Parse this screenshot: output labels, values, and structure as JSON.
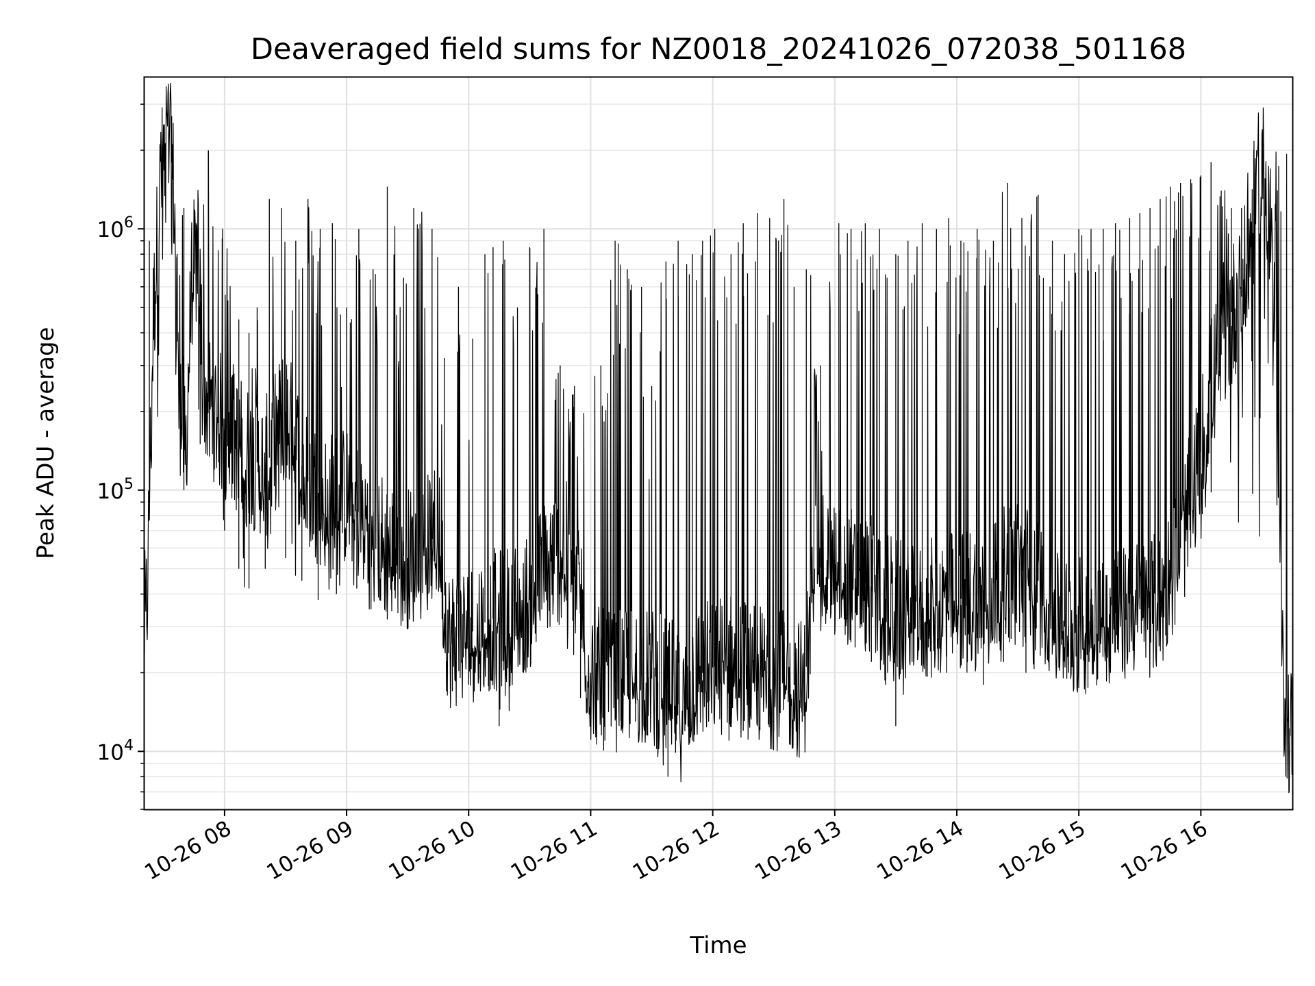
{
  "chart_data": {
    "type": "line",
    "title": "Deaveraged field sums for NZ0018_20241026_072038_501168",
    "xlabel": "Time",
    "ylabel": "Peak ADU - average",
    "yscale": "log",
    "ylim": [
      6000,
      3800000
    ],
    "xlim": [
      "2024-10-26 07:20:38",
      "2024-10-26 16:45:00"
    ],
    "grid": true,
    "legend": "none",
    "line_color": "#000000",
    "y_tick_labels": [
      {
        "value": 10000,
        "base": "10",
        "exp": "4"
      },
      {
        "value": 100000,
        "base": "10",
        "exp": "5"
      },
      {
        "value": 1000000,
        "base": "10",
        "exp": "6"
      }
    ],
    "x_ticks": [
      {
        "value": "2024-10-26 08:00",
        "label": "10-26 08"
      },
      {
        "value": "2024-10-26 09:00",
        "label": "10-26 09"
      },
      {
        "value": "2024-10-26 10:00",
        "label": "10-26 10"
      },
      {
        "value": "2024-10-26 11:00",
        "label": "10-26 11"
      },
      {
        "value": "2024-10-26 12:00",
        "label": "10-26 12"
      },
      {
        "value": "2024-10-26 13:00",
        "label": "10-26 13"
      },
      {
        "value": "2024-10-26 14:00",
        "label": "10-26 14"
      },
      {
        "value": "2024-10-26 15:00",
        "label": "10-26 15"
      },
      {
        "value": "2024-10-26 16:00",
        "label": "10-26 16"
      }
    ],
    "series": [
      {
        "x": [
          "2024-10-26 07:20:38",
          "2024-10-26 07:22",
          "2024-10-26 07:25",
          "2024-10-26 07:28",
          "2024-10-26 07:31",
          "2024-10-26 07:33",
          "2024-10-26 07:35",
          "2024-10-26 07:38",
          "2024-10-26 07:41",
          "2024-10-26 07:44",
          "2024-10-26 07:47",
          "2024-10-26 07:50",
          "2024-10-26 07:55",
          "2024-10-26 08:00",
          "2024-10-26 08:10",
          "2024-10-26 08:20",
          "2024-10-26 08:30",
          "2024-10-26 08:40",
          "2024-10-26 08:50",
          "2024-10-26 09:00",
          "2024-10-26 09:10",
          "2024-10-26 09:20",
          "2024-10-26 09:30",
          "2024-10-26 09:40",
          "2024-10-26 09:45",
          "2024-10-26 09:50",
          "2024-10-26 10:00",
          "2024-10-26 10:10",
          "2024-10-26 10:20",
          "2024-10-26 10:30",
          "2024-10-26 10:40",
          "2024-10-26 10:50",
          "2024-10-26 10:55",
          "2024-10-26 11:00",
          "2024-10-26 11:10",
          "2024-10-26 11:20",
          "2024-10-26 11:30",
          "2024-10-26 11:40",
          "2024-10-26 11:45",
          "2024-10-26 11:50",
          "2024-10-26 12:00",
          "2024-10-26 12:10",
          "2024-10-26 12:20",
          "2024-10-26 12:30",
          "2024-10-26 12:40",
          "2024-10-26 12:45",
          "2024-10-26 12:50",
          "2024-10-26 13:00",
          "2024-10-26 13:10",
          "2024-10-26 13:20",
          "2024-10-26 13:30",
          "2024-10-26 13:40",
          "2024-10-26 13:50",
          "2024-10-26 14:00",
          "2024-10-26 14:10",
          "2024-10-26 14:20",
          "2024-10-26 14:30",
          "2024-10-26 14:40",
          "2024-10-26 14:50",
          "2024-10-26 15:00",
          "2024-10-26 15:10",
          "2024-10-26 15:20",
          "2024-10-26 15:30",
          "2024-10-26 15:40",
          "2024-10-26 15:50",
          "2024-10-26 16:00",
          "2024-10-26 16:05",
          "2024-10-26 16:10",
          "2024-10-26 16:15",
          "2024-10-26 16:20",
          "2024-10-26 16:25",
          "2024-10-26 16:28",
          "2024-10-26 16:31",
          "2024-10-26 16:34",
          "2024-10-26 16:37",
          "2024-10-26 16:40",
          "2024-10-26 16:42",
          "2024-10-26 16:45"
        ],
        "y": [
          30000,
          40000,
          450000,
          1300000,
          2200000,
          2300000,
          1400000,
          250000,
          150000,
          650000,
          800000,
          230000,
          200000,
          170000,
          140000,
          120000,
          200000,
          110000,
          90000,
          95000,
          75000,
          60000,
          55000,
          62000,
          70000,
          27000,
          28000,
          32000,
          33000,
          38000,
          55000,
          58000,
          40000,
          20000,
          18000,
          20000,
          19000,
          17000,
          14000,
          19000,
          21000,
          22000,
          20000,
          19000,
          18000,
          17000,
          50000,
          52000,
          46000,
          42000,
          35000,
          32000,
          36000,
          38000,
          40000,
          45000,
          50000,
          45000,
          30000,
          30000,
          33000,
          34000,
          35000,
          37000,
          60000,
          140000,
          250000,
          330000,
          480000,
          550000,
          950000,
          1600000,
          1700000,
          1100000,
          300000,
          20000,
          14000,
          11000
        ]
      }
    ],
    "spikes": [
      [
        "2024-10-26 07:23",
        900000
      ],
      [
        "2024-10-26 07:34",
        2700000
      ],
      [
        "2024-10-26 07:40",
        1200000
      ],
      [
        "2024-10-26 07:46",
        1050000
      ],
      [
        "2024-10-26 07:52",
        2000000
      ],
      [
        "2024-10-26 07:59",
        1000000
      ],
      [
        "2024-10-26 08:07",
        450000
      ],
      [
        "2024-10-26 08:12",
        400000
      ],
      [
        "2024-10-26 08:16",
        500000
      ],
      [
        "2024-10-26 08:22",
        1300000
      ],
      [
        "2024-10-26 08:28",
        1200000
      ],
      [
        "2024-10-26 08:35",
        900000
      ],
      [
        "2024-10-26 08:41",
        1300000
      ],
      [
        "2024-10-26 08:47",
        1000000
      ],
      [
        "2024-10-26 08:53",
        1050000
      ],
      [
        "2024-10-26 09:00",
        500000
      ],
      [
        "2024-10-26 09:06",
        1000000
      ],
      [
        "2024-10-26 09:13",
        700000
      ],
      [
        "2024-10-26 09:20",
        1450000
      ],
      [
        "2024-10-26 09:28",
        650000
      ],
      [
        "2024-10-26 09:33",
        1200000
      ],
      [
        "2024-10-26 09:42",
        1000000
      ],
      [
        "2024-10-26 09:48",
        320000
      ],
      [
        "2024-10-26 09:55",
        600000
      ],
      [
        "2024-10-26 10:02",
        380000
      ],
      [
        "2024-10-26 10:08",
        800000
      ],
      [
        "2024-10-26 10:12",
        850000
      ],
      [
        "2024-10-26 10:17",
        900000
      ],
      [
        "2024-10-26 10:24",
        500000
      ],
      [
        "2024-10-26 10:30",
        850000
      ],
      [
        "2024-10-26 10:37",
        1000000
      ],
      [
        "2024-10-26 10:45",
        300000
      ],
      [
        "2024-10-26 10:52",
        250000
      ],
      [
        "2024-10-26 11:05",
        300000
      ],
      [
        "2024-10-26 11:12",
        900000
      ],
      [
        "2024-10-26 11:18",
        700000
      ],
      [
        "2024-10-26 11:25",
        600000
      ],
      [
        "2024-10-26 11:30",
        250000
      ],
      [
        "2024-10-26 11:37",
        750000
      ],
      [
        "2024-10-26 11:43",
        900000
      ],
      [
        "2024-10-26 11:50",
        800000
      ],
      [
        "2024-10-26 11:55",
        900000
      ],
      [
        "2024-10-26 12:01",
        1000000
      ],
      [
        "2024-10-26 12:09",
        800000
      ],
      [
        "2024-10-26 12:15",
        1050000
      ],
      [
        "2024-10-26 12:22",
        1150000
      ],
      [
        "2024-10-26 12:28",
        1100000
      ],
      [
        "2024-10-26 12:35",
        1300000
      ],
      [
        "2024-10-26 12:40",
        600000
      ],
      [
        "2024-10-26 12:46",
        700000
      ],
      [
        "2024-10-26 12:53",
        300000
      ],
      [
        "2024-10-26 13:02",
        1050000
      ],
      [
        "2024-10-26 13:08",
        1000000
      ],
      [
        "2024-10-26 13:15",
        1050000
      ],
      [
        "2024-10-26 13:22",
        1000000
      ],
      [
        "2024-10-26 13:30",
        800000
      ],
      [
        "2024-10-26 13:36",
        900000
      ],
      [
        "2024-10-26 13:43",
        1050000
      ],
      [
        "2024-10-26 13:50",
        1000000
      ],
      [
        "2024-10-26 13:56",
        1100000
      ],
      [
        "2024-10-26 14:02",
        900000
      ],
      [
        "2024-10-26 14:10",
        1000000
      ],
      [
        "2024-10-26 14:18",
        900000
      ],
      [
        "2024-10-26 14:25",
        1500000
      ],
      [
        "2024-10-26 14:32",
        1100000
      ],
      [
        "2024-10-26 14:40",
        1350000
      ],
      [
        "2024-10-26 14:47",
        900000
      ],
      [
        "2024-10-26 14:53",
        800000
      ],
      [
        "2024-10-26 15:00",
        1000000
      ],
      [
        "2024-10-26 15:06",
        1000000
      ],
      [
        "2024-10-26 15:12",
        1000000
      ],
      [
        "2024-10-26 15:18",
        1050000
      ],
      [
        "2024-10-26 15:25",
        1100000
      ],
      [
        "2024-10-26 15:30",
        1150000
      ],
      [
        "2024-10-26 15:35",
        1200000
      ],
      [
        "2024-10-26 15:40",
        1300000
      ],
      [
        "2024-10-26 15:45",
        1450000
      ],
      [
        "2024-10-26 15:50",
        1500000
      ],
      [
        "2024-10-26 15:55",
        1550000
      ],
      [
        "2024-10-26 16:00",
        1600000
      ],
      [
        "2024-10-26 16:05",
        1800000
      ],
      [
        "2024-10-26 16:10",
        1400000
      ],
      [
        "2024-10-26 16:15",
        1200000
      ],
      [
        "2024-10-26 16:20",
        1200000
      ],
      [
        "2024-10-26 16:26",
        2000000
      ]
    ],
    "dips": [
      [
        "2024-10-26 07:40",
        100000
      ],
      [
        "2024-10-26 07:48",
        150000
      ],
      [
        "2024-10-26 07:55",
        120000
      ],
      [
        "2024-10-26 08:00",
        70000
      ],
      [
        "2024-10-26 08:07",
        50000
      ],
      [
        "2024-10-26 08:12",
        42000
      ],
      [
        "2024-10-26 08:20",
        50000
      ],
      [
        "2024-10-26 08:30",
        55000
      ],
      [
        "2024-10-26 08:38",
        45000
      ],
      [
        "2024-10-26 08:46",
        38000
      ],
      [
        "2024-10-26 08:55",
        40000
      ],
      [
        "2024-10-26 09:05",
        42000
      ],
      [
        "2024-10-26 09:12",
        35000
      ],
      [
        "2024-10-26 09:20",
        32000
      ],
      [
        "2024-10-26 09:30",
        33000
      ],
      [
        "2024-10-26 09:40",
        40000
      ],
      [
        "2024-10-26 09:52",
        17000
      ],
      [
        "2024-10-26 10:00",
        18000
      ],
      [
        "2024-10-26 10:10",
        17000
      ],
      [
        "2024-10-26 10:15",
        12500
      ],
      [
        "2024-10-26 10:27",
        20000
      ],
      [
        "2024-10-26 10:40",
        30000
      ],
      [
        "2024-10-26 10:55",
        16000
      ],
      [
        "2024-10-26 11:00",
        13000
      ],
      [
        "2024-10-26 11:07",
        11000
      ],
      [
        "2024-10-26 11:15",
        12000
      ],
      [
        "2024-10-26 11:22",
        13000
      ],
      [
        "2024-10-26 11:28",
        11500
      ],
      [
        "2024-10-26 11:33",
        9500
      ],
      [
        "2024-10-26 11:38",
        8000
      ],
      [
        "2024-10-26 11:42",
        11000
      ],
      [
        "2024-10-26 11:50",
        11000
      ],
      [
        "2024-10-26 11:58",
        13000
      ],
      [
        "2024-10-26 12:08",
        11000
      ],
      [
        "2024-10-26 12:15",
        12000
      ],
      [
        "2024-10-26 12:22",
        12500
      ],
      [
        "2024-10-26 12:30",
        12000
      ],
      [
        "2024-10-26 12:38",
        12500
      ],
      [
        "2024-10-26 12:44",
        13000
      ],
      [
        "2024-10-26 12:50",
        40000
      ],
      [
        "2024-10-26 13:00",
        28000
      ],
      [
        "2024-10-26 13:10",
        25000
      ],
      [
        "2024-10-26 13:18",
        22000
      ],
      [
        "2024-10-26 13:25",
        18000
      ],
      [
        "2024-10-26 13:30",
        12500
      ],
      [
        "2024-10-26 13:38",
        22000
      ],
      [
        "2024-10-26 13:46",
        25000
      ],
      [
        "2024-10-26 13:55",
        20000
      ],
      [
        "2024-10-26 14:05",
        20000
      ],
      [
        "2024-10-26 14:13",
        18000
      ],
      [
        "2024-10-26 14:23",
        22000
      ],
      [
        "2024-10-26 14:34",
        20000
      ],
      [
        "2024-10-26 14:45",
        22000
      ],
      [
        "2024-10-26 14:55",
        20000
      ],
      [
        "2024-10-26 15:05",
        22000
      ],
      [
        "2024-10-26 15:15",
        21000
      ],
      [
        "2024-10-26 15:25",
        24000
      ],
      [
        "2024-10-26 15:35",
        28000
      ],
      [
        "2024-10-26 15:45",
        40000
      ],
      [
        "2024-10-26 15:55",
        60000
      ]
    ]
  }
}
